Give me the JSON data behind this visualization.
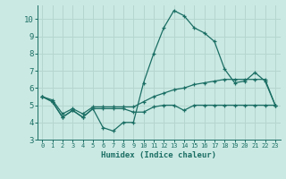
{
  "xlabel": "Humidex (Indice chaleur)",
  "background_color": "#cbe9e3",
  "grid_color": "#b5d5cf",
  "line_color": "#1a6e64",
  "xlim": [
    -0.5,
    23.5
  ],
  "ylim": [
    3,
    10.8
  ],
  "xticks": [
    0,
    1,
    2,
    3,
    4,
    5,
    6,
    7,
    8,
    9,
    10,
    11,
    12,
    13,
    14,
    15,
    16,
    17,
    18,
    19,
    20,
    21,
    22,
    23
  ],
  "yticks": [
    3,
    4,
    5,
    6,
    7,
    8,
    9,
    10
  ],
  "lines": [
    {
      "x": [
        0,
        1,
        2,
        3,
        4,
        5,
        6,
        7,
        8,
        9,
        10,
        11,
        12,
        13,
        14,
        15,
        16,
        17,
        18,
        19,
        20,
        21,
        22,
        23
      ],
      "y": [
        5.5,
        5.2,
        4.3,
        4.7,
        4.3,
        4.8,
        3.7,
        3.5,
        4.0,
        4.0,
        6.3,
        8.0,
        9.5,
        10.5,
        10.2,
        9.5,
        9.2,
        8.7,
        7.1,
        6.3,
        6.4,
        6.9,
        6.4,
        5.0
      ]
    },
    {
      "x": [
        0,
        1,
        2,
        3,
        4,
        5,
        6,
        7,
        8,
        9,
        10,
        11,
        12,
        13,
        14,
        15,
        16,
        17,
        18,
        19,
        20,
        21,
        22,
        23
      ],
      "y": [
        5.5,
        5.2,
        4.3,
        4.7,
        4.3,
        4.8,
        4.8,
        4.8,
        4.8,
        4.6,
        4.6,
        4.9,
        5.0,
        5.0,
        4.7,
        5.0,
        5.0,
        5.0,
        5.0,
        5.0,
        5.0,
        5.0,
        5.0,
        5.0
      ]
    },
    {
      "x": [
        0,
        1,
        2,
        3,
        4,
        5,
        6,
        7,
        8,
        9,
        10,
        11,
        12,
        13,
        14,
        15,
        16,
        17,
        18,
        19,
        20,
        21,
        22,
        23
      ],
      "y": [
        5.5,
        5.3,
        4.5,
        4.8,
        4.5,
        4.9,
        4.9,
        4.9,
        4.9,
        4.9,
        5.2,
        5.5,
        5.7,
        5.9,
        6.0,
        6.2,
        6.3,
        6.4,
        6.5,
        6.5,
        6.5,
        6.5,
        6.5,
        5.0
      ]
    }
  ]
}
